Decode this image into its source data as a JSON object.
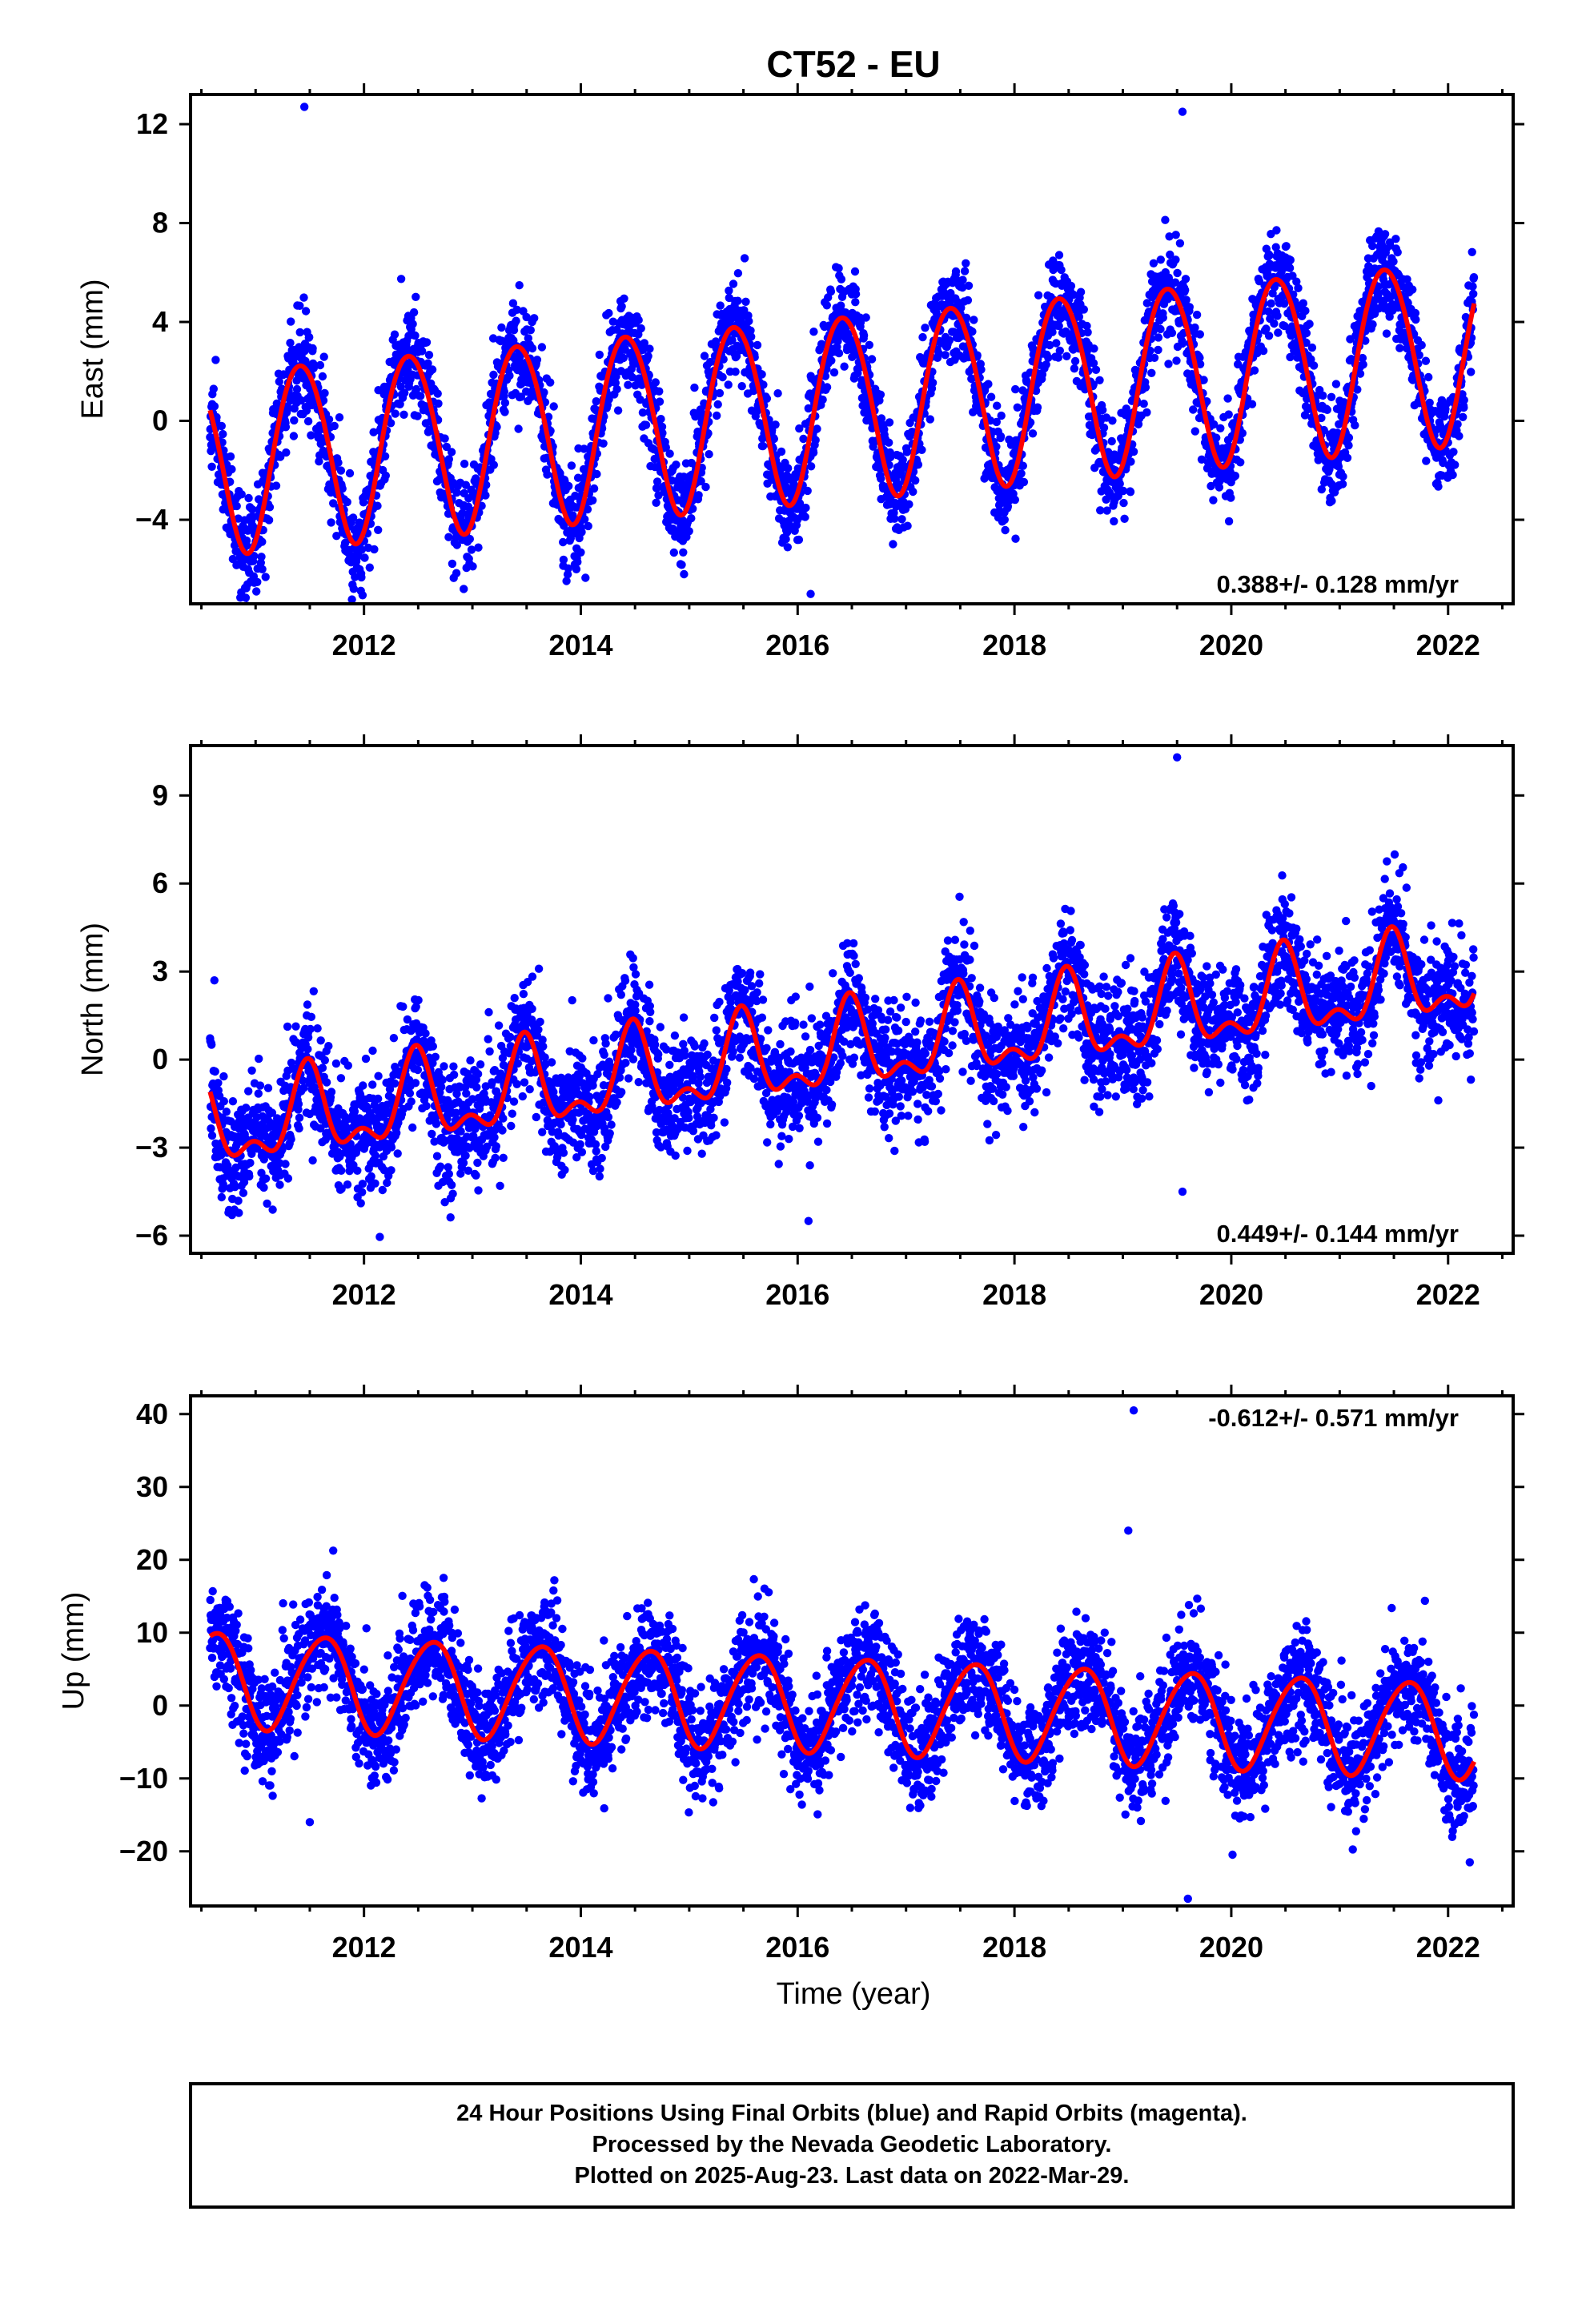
{
  "title": "CT52 - EU",
  "x_axis_label": "Time (year)",
  "colors": {
    "points": "#0000ff",
    "fit": "#ff0000",
    "frame": "#000000"
  },
  "footer": {
    "line1": "24 Hour Positions Using Final Orbits (blue) and Rapid Orbits (magenta).",
    "line2": "Processed by the Nevada Geodetic Laboratory.",
    "line3": "Plotted on 2025-Aug-23. Last data on 2022-Mar-29."
  },
  "chart_data": [
    {
      "type": "scatter",
      "name": "east",
      "ylabel": "East (mm)",
      "xlim": [
        2010.4,
        2022.6
      ],
      "ylim": [
        -7.4,
        13.2
      ],
      "yticks": [
        -4,
        0,
        4,
        8,
        12
      ],
      "ytick_labels": [
        "−4",
        "0",
        "4",
        "8",
        "12"
      ],
      "xticks": [
        2012,
        2014,
        2016,
        2018,
        2020,
        2022
      ],
      "xtick_labels": [
        "2012",
        "2014",
        "2016",
        "2018",
        "2020",
        "2022"
      ],
      "rate_label": "0.388+/- 0.128 mm/yr",
      "rate_position": "bottom-right",
      "data_start": 2010.58,
      "data_end": 2022.24,
      "model": {
        "offset": -1.6,
        "trend": 0.388,
        "annual_amplitude": 3.7,
        "annual_phase_peak": 0.42,
        "semiannual_amplitude": 0.25,
        "semiannual_phase_peak": 0.2,
        "scatter": 1.0
      },
      "outliers": [
        [
          2011.45,
          12.7
        ],
        [
          2019.55,
          12.5
        ],
        [
          2016.12,
          -7.0
        ],
        [
          2012.92,
          -6.8
        ]
      ]
    },
    {
      "type": "scatter",
      "name": "north",
      "ylabel": "North (mm)",
      "xlim": [
        2010.4,
        2022.6
      ],
      "ylim": [
        -6.6,
        10.7
      ],
      "yticks": [
        -6,
        -3,
        0,
        3,
        6,
        9
      ],
      "ytick_labels": [
        "−6",
        "−3",
        "0",
        "3",
        "6",
        "9"
      ],
      "xticks": [
        2012,
        2014,
        2016,
        2018,
        2020,
        2022
      ],
      "xtick_labels": [
        "2012",
        "2014",
        "2016",
        "2018",
        "2020",
        "2022"
      ],
      "rate_label": "0.449+/- 0.144 mm/yr",
      "rate_position": "bottom-right",
      "data_start": 2010.58,
      "data_end": 2022.24,
      "model": {
        "offset": -2.4,
        "trend": 0.449,
        "annual_amplitude": 1.3,
        "annual_phase_peak": 0.48,
        "semiannual_amplitude": 0.7,
        "semiannual_phase_peak": 0.48,
        "scatter": 1.0
      },
      "outliers": [
        [
          2019.5,
          10.3
        ],
        [
          2019.55,
          -4.5
        ],
        [
          2016.1,
          -5.5
        ],
        [
          2010.62,
          2.7
        ]
      ]
    },
    {
      "type": "scatter",
      "name": "up",
      "ylabel": "Up (mm)",
      "xlim": [
        2010.4,
        2022.6
      ],
      "ylim": [
        -27.5,
        42.5
      ],
      "yticks": [
        -20,
        -10,
        0,
        10,
        20,
        30,
        40
      ],
      "ytick_labels": [
        "−20",
        "−10",
        "0",
        "10",
        "20",
        "30",
        "40"
      ],
      "xticks": [
        2012,
        2014,
        2016,
        2018,
        2020,
        2022
      ],
      "xtick_labels": [
        "2012",
        "2014",
        "2016",
        "2018",
        "2020",
        "2022"
      ],
      "rate_label": "-0.612+/- 0.571 mm/yr",
      "rate_position": "top-right",
      "data_start": 2010.58,
      "data_end": 2022.24,
      "model": {
        "offset": 3.8,
        "trend": -0.612,
        "annual_amplitude": 6.5,
        "annual_phase_peak": 0.62,
        "semiannual_amplitude": 0.6,
        "semiannual_phase_peak": 0.3,
        "scatter": 3.8
      },
      "outliers": [
        [
          2019.1,
          40.5
        ],
        [
          2019.05,
          24.0
        ],
        [
          2019.6,
          -26.5
        ],
        [
          2011.5,
          -16.0
        ],
        [
          2022.2,
          -21.5
        ]
      ]
    }
  ]
}
